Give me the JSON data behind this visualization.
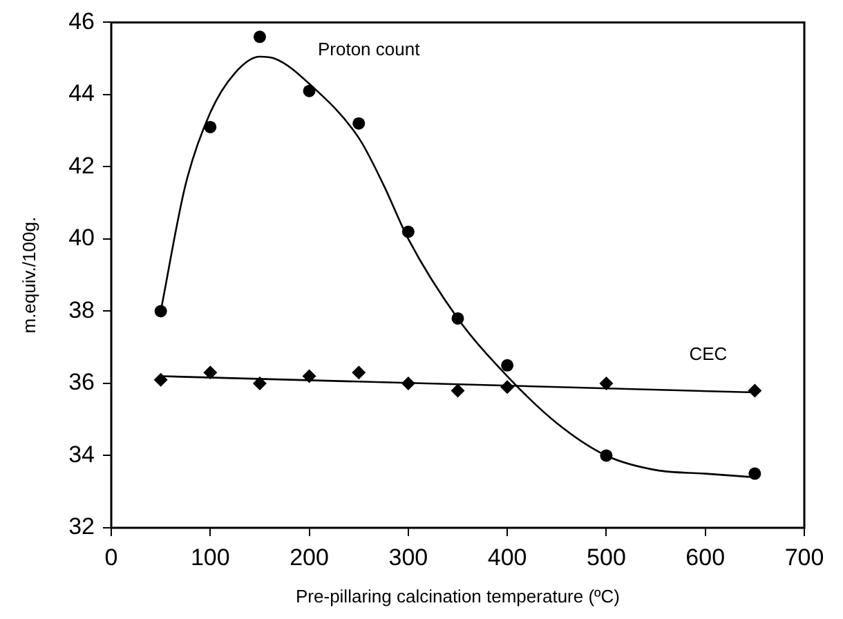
{
  "chart_data": {
    "type": "scatter",
    "xlabel": "Pre-pillaring calcination temperature (ºC)",
    "ylabel": "m.equiv./100g.",
    "xlim": [
      0,
      700
    ],
    "xticks": [
      0,
      100,
      200,
      300,
      400,
      500,
      600,
      700
    ],
    "ylim": [
      32,
      46
    ],
    "yticks": [
      32,
      34,
      36,
      38,
      40,
      42,
      44,
      46
    ],
    "grid": false,
    "legend": false,
    "series": [
      {
        "name": "Proton count",
        "type": "scatter",
        "marker": "circle",
        "color": "#000000",
        "x": [
          50,
          100,
          150,
          200,
          250,
          300,
          350,
          400,
          500,
          650
        ],
        "values": [
          38.0,
          43.1,
          45.6,
          44.1,
          43.2,
          40.2,
          37.8,
          36.5,
          34.0,
          33.5
        ]
      },
      {
        "name": "CEC",
        "type": "scatter",
        "marker": "diamond",
        "color": "#000000",
        "x": [
          50,
          100,
          150,
          200,
          250,
          300,
          350,
          400,
          500,
          650
        ],
        "values": [
          36.1,
          36.3,
          36.0,
          36.2,
          36.3,
          36.0,
          35.8,
          35.9,
          36.0,
          35.8
        ]
      },
      {
        "type": "line",
        "marker": "none",
        "color": "#000000",
        "x": [
          50,
          75,
          100,
          125,
          150,
          165,
          200,
          250,
          275,
          300,
          350,
          400,
          450,
          500,
          550,
          600,
          650
        ],
        "values": [
          38.0,
          41.5,
          43.5,
          44.6,
          45.05,
          45.0,
          44.3,
          42.8,
          41.5,
          40.0,
          37.8,
          36.2,
          34.9,
          34.0,
          33.6,
          33.5,
          33.4
        ]
      },
      {
        "type": "line",
        "marker": "none",
        "color": "#000000",
        "x": [
          50,
          650
        ],
        "values": [
          36.2,
          35.75
        ]
      }
    ]
  }
}
